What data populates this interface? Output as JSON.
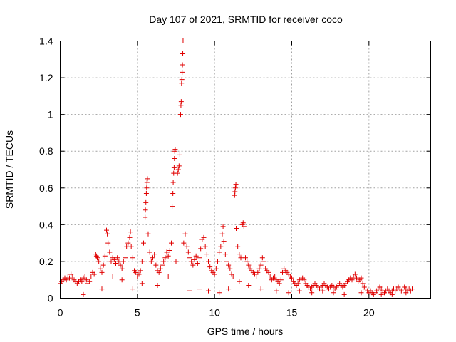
{
  "chart_data": {
    "type": "scatter",
    "title": "Day 107 of 2021, SRMTID for receiver coco",
    "xlabel": "GPS time / hours",
    "ylabel": "SRMTID / TECUs",
    "xlim": [
      0,
      24
    ],
    "ylim": [
      0,
      1.4
    ],
    "xticks": [
      0,
      5,
      10,
      15,
      20
    ],
    "xtick_labels": [
      "0",
      "5",
      "10",
      "15",
      "20"
    ],
    "yticks": [
      0,
      0.2,
      0.4,
      0.6,
      0.8,
      1.0,
      1.2,
      1.4
    ],
    "ytick_labels": [
      "0",
      "0.2",
      "0.4",
      "0.6",
      "0.8",
      "1",
      "1.2",
      "1.4"
    ],
    "grid": true,
    "marker": "+",
    "color": "#e00000",
    "series": [
      {
        "name": "SRMTID",
        "points": [
          [
            0.0,
            0.08
          ],
          [
            0.1,
            0.09
          ],
          [
            0.2,
            0.1
          ],
          [
            0.3,
            0.11
          ],
          [
            0.4,
            0.1
          ],
          [
            0.5,
            0.12
          ],
          [
            0.6,
            0.11
          ],
          [
            0.7,
            0.13
          ],
          [
            0.8,
            0.12
          ],
          [
            0.9,
            0.1
          ],
          [
            1.0,
            0.09
          ],
          [
            1.1,
            0.08
          ],
          [
            1.2,
            0.09
          ],
          [
            1.3,
            0.1
          ],
          [
            1.4,
            0.09
          ],
          [
            1.5,
            0.11
          ],
          [
            1.6,
            0.12
          ],
          [
            1.7,
            0.1
          ],
          [
            1.8,
            0.08
          ],
          [
            1.9,
            0.09
          ],
          [
            2.0,
            0.12
          ],
          [
            2.1,
            0.14
          ],
          [
            2.2,
            0.13
          ],
          [
            2.3,
            0.24
          ],
          [
            2.35,
            0.23
          ],
          [
            2.4,
            0.22
          ],
          [
            2.5,
            0.2
          ],
          [
            2.6,
            0.16
          ],
          [
            2.7,
            0.14
          ],
          [
            2.8,
            0.18
          ],
          [
            2.9,
            0.23
          ],
          [
            3.0,
            0.37
          ],
          [
            3.05,
            0.35
          ],
          [
            3.1,
            0.3
          ],
          [
            3.2,
            0.25
          ],
          [
            3.3,
            0.2
          ],
          [
            3.4,
            0.22
          ],
          [
            3.5,
            0.21
          ],
          [
            3.6,
            0.19
          ],
          [
            3.7,
            0.22
          ],
          [
            3.8,
            0.2
          ],
          [
            3.9,
            0.18
          ],
          [
            4.0,
            0.16
          ],
          [
            4.1,
            0.2
          ],
          [
            4.2,
            0.22
          ],
          [
            4.3,
            0.28
          ],
          [
            4.4,
            0.3
          ],
          [
            4.5,
            0.33
          ],
          [
            4.55,
            0.36
          ],
          [
            4.6,
            0.28
          ],
          [
            4.7,
            0.22
          ],
          [
            4.8,
            0.15
          ],
          [
            4.9,
            0.14
          ],
          [
            5.0,
            0.12
          ],
          [
            5.1,
            0.13
          ],
          [
            5.2,
            0.15
          ],
          [
            5.3,
            0.2
          ],
          [
            5.4,
            0.3
          ],
          [
            5.5,
            0.44
          ],
          [
            5.52,
            0.48
          ],
          [
            5.55,
            0.52
          ],
          [
            5.58,
            0.57
          ],
          [
            5.6,
            0.6
          ],
          [
            5.62,
            0.63
          ],
          [
            5.65,
            0.65
          ],
          [
            5.7,
            0.35
          ],
          [
            5.8,
            0.25
          ],
          [
            5.9,
            0.2
          ],
          [
            6.0,
            0.22
          ],
          [
            6.1,
            0.24
          ],
          [
            6.2,
            0.18
          ],
          [
            6.3,
            0.15
          ],
          [
            6.4,
            0.14
          ],
          [
            6.5,
            0.16
          ],
          [
            6.6,
            0.18
          ],
          [
            6.7,
            0.2
          ],
          [
            6.8,
            0.22
          ],
          [
            6.9,
            0.25
          ],
          [
            7.0,
            0.23
          ],
          [
            7.1,
            0.26
          ],
          [
            7.2,
            0.3
          ],
          [
            7.25,
            0.5
          ],
          [
            7.3,
            0.57
          ],
          [
            7.32,
            0.63
          ],
          [
            7.35,
            0.68
          ],
          [
            7.38,
            0.71
          ],
          [
            7.4,
            0.76
          ],
          [
            7.42,
            0.8
          ],
          [
            7.45,
            0.81
          ],
          [
            7.5,
            0.2
          ],
          [
            7.6,
            0.68
          ],
          [
            7.65,
            0.7
          ],
          [
            7.7,
            0.72
          ],
          [
            7.75,
            0.78
          ],
          [
            7.8,
            1.0
          ],
          [
            7.82,
            1.05
          ],
          [
            7.84,
            1.07
          ],
          [
            7.86,
            1.17
          ],
          [
            7.88,
            1.19
          ],
          [
            7.9,
            1.23
          ],
          [
            7.92,
            1.27
          ],
          [
            7.94,
            1.33
          ],
          [
            7.96,
            1.4
          ],
          [
            8.0,
            0.3
          ],
          [
            8.1,
            0.35
          ],
          [
            8.2,
            0.28
          ],
          [
            8.3,
            0.25
          ],
          [
            8.4,
            0.22
          ],
          [
            8.5,
            0.2
          ],
          [
            8.6,
            0.18
          ],
          [
            8.7,
            0.21
          ],
          [
            8.8,
            0.23
          ],
          [
            8.9,
            0.19
          ],
          [
            9.0,
            0.22
          ],
          [
            9.1,
            0.27
          ],
          [
            9.2,
            0.32
          ],
          [
            9.3,
            0.33
          ],
          [
            9.4,
            0.28
          ],
          [
            9.5,
            0.24
          ],
          [
            9.6,
            0.2
          ],
          [
            9.7,
            0.17
          ],
          [
            9.8,
            0.15
          ],
          [
            9.9,
            0.14
          ],
          [
            10.0,
            0.13
          ],
          [
            10.1,
            0.16
          ],
          [
            10.2,
            0.2
          ],
          [
            10.3,
            0.25
          ],
          [
            10.4,
            0.28
          ],
          [
            10.5,
            0.35
          ],
          [
            10.55,
            0.39
          ],
          [
            10.6,
            0.31
          ],
          [
            10.7,
            0.24
          ],
          [
            10.8,
            0.2
          ],
          [
            10.9,
            0.18
          ],
          [
            11.0,
            0.16
          ],
          [
            11.1,
            0.13
          ],
          [
            11.2,
            0.12
          ],
          [
            11.3,
            0.56
          ],
          [
            11.32,
            0.58
          ],
          [
            11.35,
            0.6
          ],
          [
            11.38,
            0.62
          ],
          [
            11.4,
            0.38
          ],
          [
            11.5,
            0.28
          ],
          [
            11.6,
            0.24
          ],
          [
            11.7,
            0.22
          ],
          [
            11.8,
            0.4
          ],
          [
            11.85,
            0.41
          ],
          [
            11.9,
            0.39
          ],
          [
            12.0,
            0.22
          ],
          [
            12.1,
            0.2
          ],
          [
            12.2,
            0.18
          ],
          [
            12.3,
            0.16
          ],
          [
            12.4,
            0.15
          ],
          [
            12.5,
            0.14
          ],
          [
            12.6,
            0.13
          ],
          [
            12.7,
            0.12
          ],
          [
            12.8,
            0.14
          ],
          [
            12.9,
            0.16
          ],
          [
            13.0,
            0.18
          ],
          [
            13.1,
            0.22
          ],
          [
            13.2,
            0.2
          ],
          [
            13.3,
            0.16
          ],
          [
            13.4,
            0.15
          ],
          [
            13.5,
            0.14
          ],
          [
            13.6,
            0.12
          ],
          [
            13.7,
            0.1
          ],
          [
            13.8,
            0.11
          ],
          [
            13.9,
            0.12
          ],
          [
            14.0,
            0.1
          ],
          [
            14.1,
            0.09
          ],
          [
            14.2,
            0.08
          ],
          [
            14.3,
            0.1
          ],
          [
            14.4,
            0.14
          ],
          [
            14.5,
            0.16
          ],
          [
            14.6,
            0.15
          ],
          [
            14.7,
            0.14
          ],
          [
            14.8,
            0.13
          ],
          [
            14.9,
            0.12
          ],
          [
            15.0,
            0.11
          ],
          [
            15.1,
            0.09
          ],
          [
            15.2,
            0.08
          ],
          [
            15.3,
            0.07
          ],
          [
            15.4,
            0.08
          ],
          [
            15.5,
            0.1
          ],
          [
            15.6,
            0.12
          ],
          [
            15.7,
            0.11
          ],
          [
            15.8,
            0.1
          ],
          [
            15.9,
            0.08
          ],
          [
            16.0,
            0.07
          ],
          [
            16.1,
            0.06
          ],
          [
            16.2,
            0.05
          ],
          [
            16.3,
            0.06
          ],
          [
            16.4,
            0.07
          ],
          [
            16.5,
            0.08
          ],
          [
            16.6,
            0.07
          ],
          [
            16.7,
            0.06
          ],
          [
            16.8,
            0.05
          ],
          [
            16.9,
            0.06
          ],
          [
            17.0,
            0.07
          ],
          [
            17.1,
            0.08
          ],
          [
            17.2,
            0.07
          ],
          [
            17.3,
            0.06
          ],
          [
            17.4,
            0.05
          ],
          [
            17.5,
            0.06
          ],
          [
            17.6,
            0.07
          ],
          [
            17.7,
            0.06
          ],
          [
            17.8,
            0.05
          ],
          [
            17.9,
            0.06
          ],
          [
            18.0,
            0.07
          ],
          [
            18.1,
            0.08
          ],
          [
            18.2,
            0.07
          ],
          [
            18.3,
            0.06
          ],
          [
            18.4,
            0.07
          ],
          [
            18.5,
            0.08
          ],
          [
            18.6,
            0.09
          ],
          [
            18.7,
            0.1
          ],
          [
            18.8,
            0.11
          ],
          [
            18.9,
            0.1
          ],
          [
            19.0,
            0.12
          ],
          [
            19.1,
            0.13
          ],
          [
            19.2,
            0.11
          ],
          [
            19.3,
            0.09
          ],
          [
            19.4,
            0.1
          ],
          [
            19.5,
            0.11
          ],
          [
            19.6,
            0.08
          ],
          [
            19.7,
            0.06
          ],
          [
            19.8,
            0.05
          ],
          [
            19.9,
            0.04
          ],
          [
            20.0,
            0.03
          ],
          [
            20.1,
            0.04
          ],
          [
            20.2,
            0.03
          ],
          [
            20.3,
            0.02
          ],
          [
            20.4,
            0.03
          ],
          [
            20.5,
            0.04
          ],
          [
            20.6,
            0.05
          ],
          [
            20.7,
            0.06
          ],
          [
            20.8,
            0.05
          ],
          [
            20.9,
            0.04
          ],
          [
            21.0,
            0.03
          ],
          [
            21.1,
            0.04
          ],
          [
            21.2,
            0.05
          ],
          [
            21.3,
            0.04
          ],
          [
            21.4,
            0.03
          ],
          [
            21.5,
            0.04
          ],
          [
            21.6,
            0.05
          ],
          [
            21.7,
            0.04
          ],
          [
            21.8,
            0.05
          ],
          [
            21.9,
            0.06
          ],
          [
            22.0,
            0.05
          ],
          [
            22.1,
            0.04
          ],
          [
            22.2,
            0.05
          ],
          [
            22.3,
            0.06
          ],
          [
            22.4,
            0.05
          ],
          [
            22.5,
            0.04
          ],
          [
            22.6,
            0.05
          ],
          [
            22.7,
            0.04
          ],
          [
            22.8,
            0.05
          ],
          [
            1.5,
            0.02
          ],
          [
            2.7,
            0.05
          ],
          [
            3.4,
            0.12
          ],
          [
            4.0,
            0.1
          ],
          [
            4.7,
            0.05
          ],
          [
            5.3,
            0.08
          ],
          [
            6.3,
            0.07
          ],
          [
            7.0,
            0.12
          ],
          [
            8.4,
            0.04
          ],
          [
            9.0,
            0.05
          ],
          [
            9.6,
            0.04
          ],
          [
            10.3,
            0.03
          ],
          [
            10.9,
            0.05
          ],
          [
            11.6,
            0.09
          ],
          [
            12.2,
            0.07
          ],
          [
            13.0,
            0.05
          ],
          [
            14.0,
            0.04
          ],
          [
            14.8,
            0.03
          ],
          [
            15.5,
            0.04
          ],
          [
            16.3,
            0.03
          ],
          [
            17.0,
            0.04
          ],
          [
            17.7,
            0.03
          ],
          [
            18.4,
            0.02
          ],
          [
            19.5,
            0.03
          ],
          [
            20.8,
            0.02
          ],
          [
            21.5,
            0.02
          ],
          [
            22.4,
            0.03
          ]
        ]
      }
    ]
  }
}
